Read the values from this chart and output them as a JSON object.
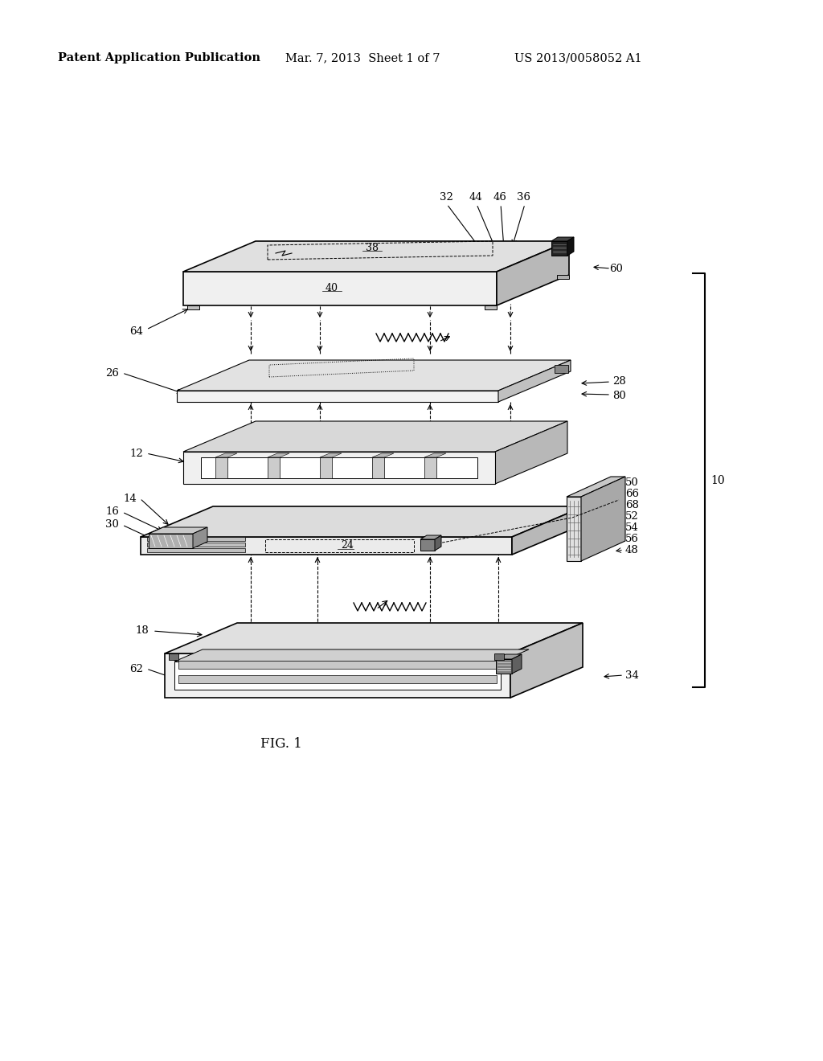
{
  "bg_color": "#ffffff",
  "header_left": "Patent Application Publication",
  "header_mid": "Mar. 7, 2013  Sheet 1 of 7",
  "header_right": "US 2013/0058052 A1",
  "fig_label": "FIG. 1",
  "ec": "#000000",
  "fc_light": "#f0f0f0",
  "fc_top": "#d8d8d8",
  "fc_right": "#a8a8a8",
  "fc_dark": "#505050",
  "fc_med": "#888888",
  "fc_white": "#ffffff"
}
